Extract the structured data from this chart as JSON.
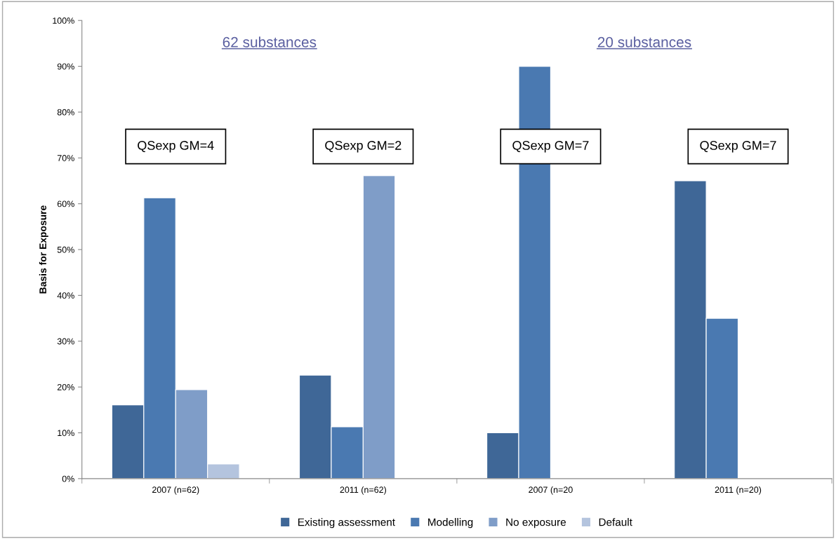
{
  "chart_data": {
    "type": "bar",
    "ylabel": "Basis for Exposure",
    "categories": [
      "2007 (n=62)",
      "2011 (n=62)",
      "2007 (n=20",
      "2011 (n=20)"
    ],
    "series": [
      {
        "name": "Existing assessment",
        "color": "#3f6797",
        "values": [
          16.1,
          22.6,
          10,
          65
        ]
      },
      {
        "name": "Modelling",
        "color": "#4a79b1",
        "values": [
          61.3,
          11.3,
          90,
          35
        ]
      },
      {
        "name": "No exposure",
        "color": "#7f9dc8",
        "values": [
          19.4,
          66.1,
          null,
          null
        ]
      },
      {
        "name": "Default",
        "color": "#b4c4de",
        "values": [
          3.2,
          null,
          null,
          null
        ]
      }
    ],
    "ylim": [
      0,
      100
    ],
    "yticks": [
      {
        "value": 0,
        "label": "0%"
      },
      {
        "value": 10,
        "label": "10%"
      },
      {
        "value": 20,
        "label": "20%"
      },
      {
        "value": 30,
        "label": "30%"
      },
      {
        "value": 40,
        "label": "40%"
      },
      {
        "value": 50,
        "label": "50%"
      },
      {
        "value": 60,
        "label": "60%"
      },
      {
        "value": 70,
        "label": "70%"
      },
      {
        "value": 80,
        "label": "80%"
      },
      {
        "value": 90,
        "label": "90%"
      },
      {
        "value": 100,
        "label": "100%"
      }
    ],
    "grid": false,
    "legend": "bottom",
    "annotations": [
      "62 substances",
      "20 substances",
      "QSexp GM=4",
      "QSexp GM=2",
      "QSexp GM=7",
      "QSexp GM=7"
    ]
  }
}
